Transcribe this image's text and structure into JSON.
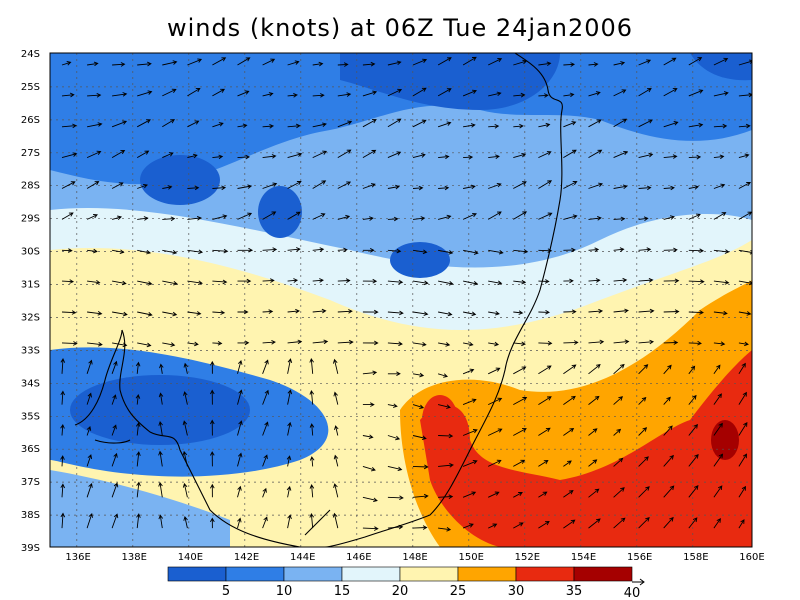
{
  "title": "winds (knots) at 06Z Tue 24jan2006",
  "map": {
    "lat_labels": [
      "24S",
      "25S",
      "26S",
      "27S",
      "28S",
      "29S",
      "30S",
      "31S",
      "32S",
      "33S",
      "34S",
      "35S",
      "36S",
      "37S",
      "38S",
      "39S"
    ],
    "lon_labels": [
      "136E",
      "138E",
      "140E",
      "142E",
      "144E",
      "146E",
      "148E",
      "150E",
      "152E",
      "154E",
      "156E",
      "158E",
      "160E"
    ]
  },
  "colorbar": {
    "colors": [
      "#1a5fd0",
      "#2f7ee6",
      "#7ab3f2",
      "#e2f5fb",
      "#fff4b0",
      "#ffa500",
      "#e82a10",
      "#a50000"
    ],
    "labels": [
      "5",
      "10",
      "15",
      "20",
      "25",
      "30",
      "35",
      "40"
    ]
  },
  "colors": {
    "coast": "#000000",
    "grid": "#555555",
    "arrow": "#000000"
  }
}
